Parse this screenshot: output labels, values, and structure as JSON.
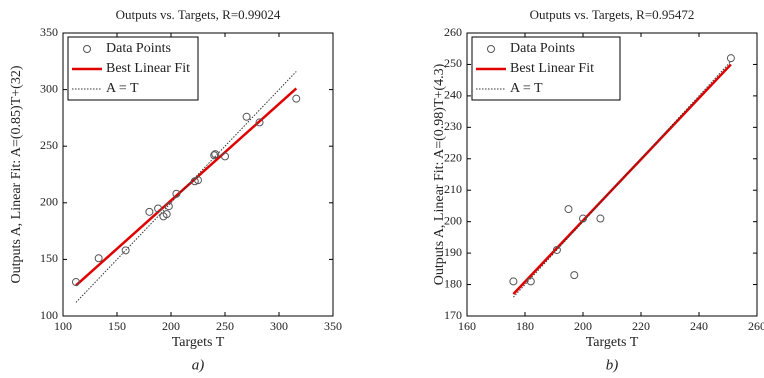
{
  "chart_data": [
    {
      "type": "scatter",
      "title": "Outputs vs. Targets, R=0.99024",
      "x_label": "Targets T",
      "y_label": "Outputs A,  Linear Fit: A=(0.85)T+(32)",
      "caption": "a)",
      "xlim": [
        100,
        350
      ],
      "xticks": [
        100,
        150,
        200,
        250,
        300,
        350
      ],
      "ylim": [
        100,
        350
      ],
      "yticks": [
        100,
        150,
        200,
        250,
        300,
        350
      ],
      "legend": "upper left",
      "series": [
        {
          "name": "Data Points",
          "style": "marker",
          "color": "#555555",
          "x": [
            112,
            133,
            158,
            180,
            188,
            193,
            196,
            198,
            205,
            222,
            225,
            240,
            241,
            250,
            270,
            282,
            316
          ],
          "values": [
            130,
            151,
            158,
            192,
            195,
            188,
            190,
            197,
            208,
            219,
            220,
            242,
            243,
            241,
            276,
            271,
            292
          ]
        },
        {
          "name": "Best Linear Fit",
          "style": "solid",
          "color": "#e00000",
          "x": [
            112,
            316
          ],
          "values": [
            127,
            301
          ]
        },
        {
          "name": "A = T",
          "style": "dotted",
          "color": "#333333",
          "x": [
            112,
            316
          ],
          "values": [
            112,
            316
          ]
        }
      ]
    },
    {
      "type": "scatter",
      "title": "Outputs vs. Targets, R=0.95472",
      "x_label": "Targets T",
      "y_label": "Outputs A,  Linear Fit: A=(0.98)T+(4.3)",
      "caption": "b)",
      "xlim": [
        160,
        260
      ],
      "xticks": [
        160,
        180,
        200,
        220,
        240,
        260
      ],
      "ylim": [
        170,
        260
      ],
      "yticks": [
        170,
        180,
        190,
        200,
        210,
        220,
        230,
        240,
        250,
        260
      ],
      "legend": "upper left",
      "series": [
        {
          "name": "Data Points",
          "style": "marker",
          "color": "#555555",
          "x": [
            176,
            182,
            191,
            195,
            197,
            200,
            206,
            251
          ],
          "values": [
            181,
            181,
            191,
            204,
            183,
            201,
            201,
            252
          ]
        },
        {
          "name": "Best Linear Fit",
          "style": "solid",
          "color": "#e00000",
          "x": [
            176,
            251
          ],
          "values": [
            177,
            250
          ]
        },
        {
          "name": "A = T",
          "style": "dotted",
          "color": "#333333",
          "x": [
            176,
            251
          ],
          "values": [
            176,
            251
          ]
        }
      ]
    }
  ]
}
